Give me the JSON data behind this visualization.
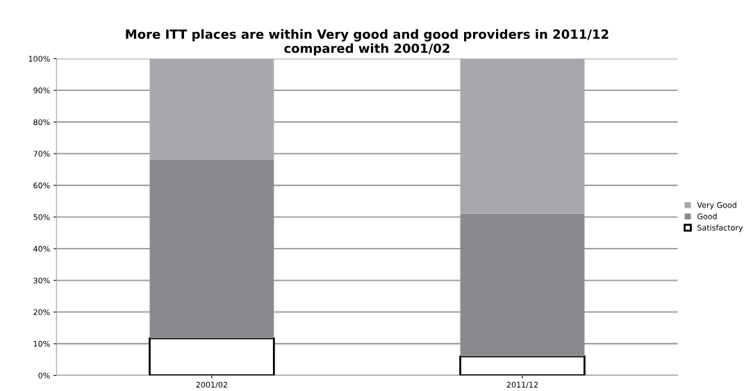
{
  "chart_data": {
    "type": "bar",
    "title": "More ITT places are within Very good and good providers in 2011/12\ncompared with 2001/02",
    "categories": [
      "2001/02",
      "2011/12"
    ],
    "stacked": true,
    "series": [
      {
        "name": "Satisfactory",
        "color": "#ffffff",
        "values": [
          11.7,
          6.0
        ]
      },
      {
        "name": "Good",
        "color": "#898a8e",
        "values": [
          56.5,
          45.1
        ]
      },
      {
        "name": "Very Good",
        "color": "#a7a8ab",
        "values": [
          31.8,
          48.9
        ]
      }
    ],
    "ylim": [
      0,
      100
    ],
    "yticks": [
      {
        "value": 0,
        "label": "0%"
      },
      {
        "value": 10,
        "label": "10%"
      },
      {
        "value": 20,
        "label": "20%"
      },
      {
        "value": 30,
        "label": "30%"
      },
      {
        "value": 40,
        "label": "40%"
      },
      {
        "value": 50,
        "label": "50%"
      },
      {
        "value": 60,
        "label": "60%"
      },
      {
        "value": 70,
        "label": "70%"
      },
      {
        "value": 80,
        "label": "80%"
      },
      {
        "value": 90,
        "label": "90%"
      },
      {
        "value": 100,
        "label": "100%"
      }
    ],
    "grid": "y",
    "legend": "right"
  }
}
